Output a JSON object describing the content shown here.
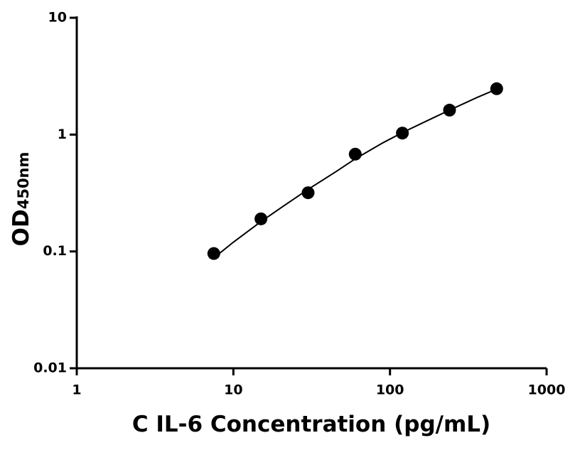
{
  "chart_data": {
    "type": "scatter",
    "x": [
      7.5,
      15,
      30,
      60,
      120,
      240,
      480
    ],
    "values": [
      0.096,
      0.19,
      0.318,
      0.68,
      1.03,
      1.62,
      2.47
    ],
    "color": "#000000",
    "curve": {
      "x": [
        7.5,
        10,
        15,
        20,
        30,
        45,
        60,
        90,
        120,
        180,
        240,
        360,
        480
      ],
      "values": [
        0.088,
        0.12,
        0.18,
        0.235,
        0.34,
        0.48,
        0.62,
        0.85,
        1.04,
        1.35,
        1.62,
        2.08,
        2.45
      ]
    },
    "xlabel": "C IL-6 Concentration (pg/mL)",
    "ylabel": "OD",
    "ylabel_sub": "450nm",
    "xscale": "log",
    "yscale": "log",
    "xlim": [
      1,
      1000
    ],
    "xticks": [
      1,
      10,
      100,
      1000
    ],
    "ylim": [
      0.01,
      10
    ],
    "yticks": [
      0.01,
      0.1,
      1,
      10
    ]
  }
}
